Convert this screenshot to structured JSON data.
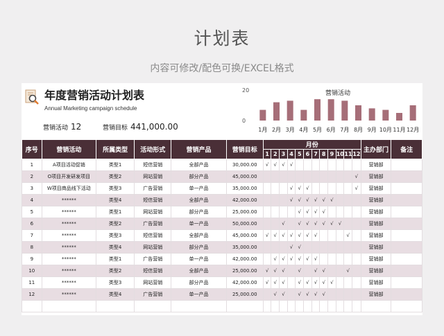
{
  "page": {
    "title": "计划表",
    "subtitle": "内容可修改/配色可换/EXCEL格式"
  },
  "doc": {
    "title": "年度营销活动计划表",
    "subtitle": "Annual Marketing campaign schedule",
    "count_label": "营销活动",
    "count_value": "12",
    "target_label": "营销目标",
    "target_value": "441,000.00"
  },
  "colors": {
    "header_bg": "#4a2f37",
    "alt_row": "#e8dde2",
    "bar": "#a66e78"
  },
  "chart_data": {
    "type": "bar",
    "title": "营销活动",
    "categories": [
      "1月",
      "2月",
      "3月",
      "4月",
      "5月",
      "6月",
      "7月",
      "8月",
      "9月",
      "10月",
      "11月",
      "12月"
    ],
    "values": [
      7,
      12,
      13,
      7,
      14,
      14,
      13,
      10,
      8,
      7,
      5,
      10
    ],
    "ylim": [
      0,
      20
    ],
    "yticks": [
      "20",
      "0"
    ]
  },
  "table": {
    "headers": {
      "no": "序号",
      "activity": "营销活动",
      "type": "所属类型",
      "form": "活动形式",
      "product": "营销产品",
      "target": "营销目标",
      "months": "月份",
      "dept": "主办部门",
      "note": "备注"
    },
    "month_numbers": [
      "1",
      "2",
      "3",
      "4",
      "5",
      "6",
      "7",
      "8",
      "9",
      "10",
      "11",
      "12"
    ],
    "rows": [
      {
        "no": "1",
        "activity": "A项目活动促销",
        "type": "类型1",
        "form": "短信营销",
        "product": "全部产品",
        "target": "30,000.00",
        "months": [
          "√",
          "√",
          "√",
          "√",
          "",
          "",
          "",
          "",
          "",
          "",
          "",
          ""
        ],
        "dept": "营销部",
        "note": ""
      },
      {
        "no": "2",
        "activity": "O项目开发研发项目",
        "type": "类型2",
        "form": "网站营销",
        "product": "部分产品",
        "target": "45,000.00",
        "months": [
          "",
          "",
          "",
          "",
          "",
          "",
          "",
          "",
          "",
          "",
          "",
          "√"
        ],
        "dept": "营销部",
        "note": ""
      },
      {
        "no": "3",
        "activity": "W项目商品线下活动",
        "type": "类型3",
        "form": "广告营销",
        "product": "单一产品",
        "target": "35,000.00",
        "months": [
          "",
          "",
          "",
          "√",
          "√",
          "√",
          "",
          "",
          "",
          "",
          "",
          "√"
        ],
        "dept": "营销部",
        "note": ""
      },
      {
        "no": "4",
        "activity": "******",
        "type": "类型4",
        "form": "短信营销",
        "product": "全部产品",
        "target": "42,000.00",
        "months": [
          "",
          "",
          "",
          "√",
          "√",
          "√",
          "√",
          "√",
          "√",
          "",
          "",
          ""
        ],
        "dept": "营销部",
        "note": ""
      },
      {
        "no": "5",
        "activity": "******",
        "type": "类型1",
        "form": "网站营销",
        "product": "部分产品",
        "target": "25,000.00",
        "months": [
          "",
          "",
          "",
          "",
          "√",
          "√",
          "√",
          "√",
          "",
          "",
          "",
          ""
        ],
        "dept": "营销部",
        "note": ""
      },
      {
        "no": "6",
        "activity": "******",
        "type": "类型2",
        "form": "广告营销",
        "product": "单一产品",
        "target": "50,000.00",
        "months": [
          "",
          "",
          "√",
          "",
          "√",
          "√",
          "√",
          "√",
          "√",
          "√",
          "",
          ""
        ],
        "dept": "营销部",
        "note": ""
      },
      {
        "no": "7",
        "activity": "******",
        "type": "类型3",
        "form": "短信营销",
        "product": "全部产品",
        "target": "45,000.00",
        "months": [
          "√",
          "√",
          "√",
          "√",
          "√",
          "√",
          "√",
          "",
          "",
          "",
          "√",
          ""
        ],
        "dept": "营销部",
        "note": ""
      },
      {
        "no": "8",
        "activity": "******",
        "type": "类型4",
        "form": "网站营销",
        "product": "部分产品",
        "target": "35,000.00",
        "months": [
          "",
          "",
          "",
          "√",
          "√",
          "",
          "",
          "",
          "",
          "",
          "",
          ""
        ],
        "dept": "营销部",
        "note": ""
      },
      {
        "no": "9",
        "activity": "******",
        "type": "类型1",
        "form": "广告营销",
        "product": "单一产品",
        "target": "42,000.00",
        "months": [
          "",
          "√",
          "√",
          "√",
          "√",
          "√",
          "√",
          "",
          "",
          "",
          "",
          ""
        ],
        "dept": "营销部",
        "note": ""
      },
      {
        "no": "10",
        "activity": "******",
        "type": "类型2",
        "form": "短信营销",
        "product": "全部产品",
        "target": "25,000.00",
        "months": [
          "√",
          "√",
          "√",
          "",
          "√",
          "",
          "√",
          "√",
          "",
          "",
          "√",
          ""
        ],
        "dept": "营销部",
        "note": ""
      },
      {
        "no": "11",
        "activity": "******",
        "type": "类型3",
        "form": "网站营销",
        "product": "部分产品",
        "target": "42,000.00",
        "months": [
          "√",
          "√",
          "√",
          "",
          "√",
          "√",
          "√",
          "√",
          "√",
          "",
          "",
          ""
        ],
        "dept": "营销部",
        "note": ""
      },
      {
        "no": "12",
        "activity": "******",
        "type": "类型4",
        "form": "广告营销",
        "product": "单一产品",
        "target": "25,000.00",
        "months": [
          "",
          "√",
          "√",
          "",
          "√",
          "√",
          "√",
          "√",
          "",
          "",
          "",
          ""
        ],
        "dept": "营销部",
        "note": ""
      }
    ]
  }
}
